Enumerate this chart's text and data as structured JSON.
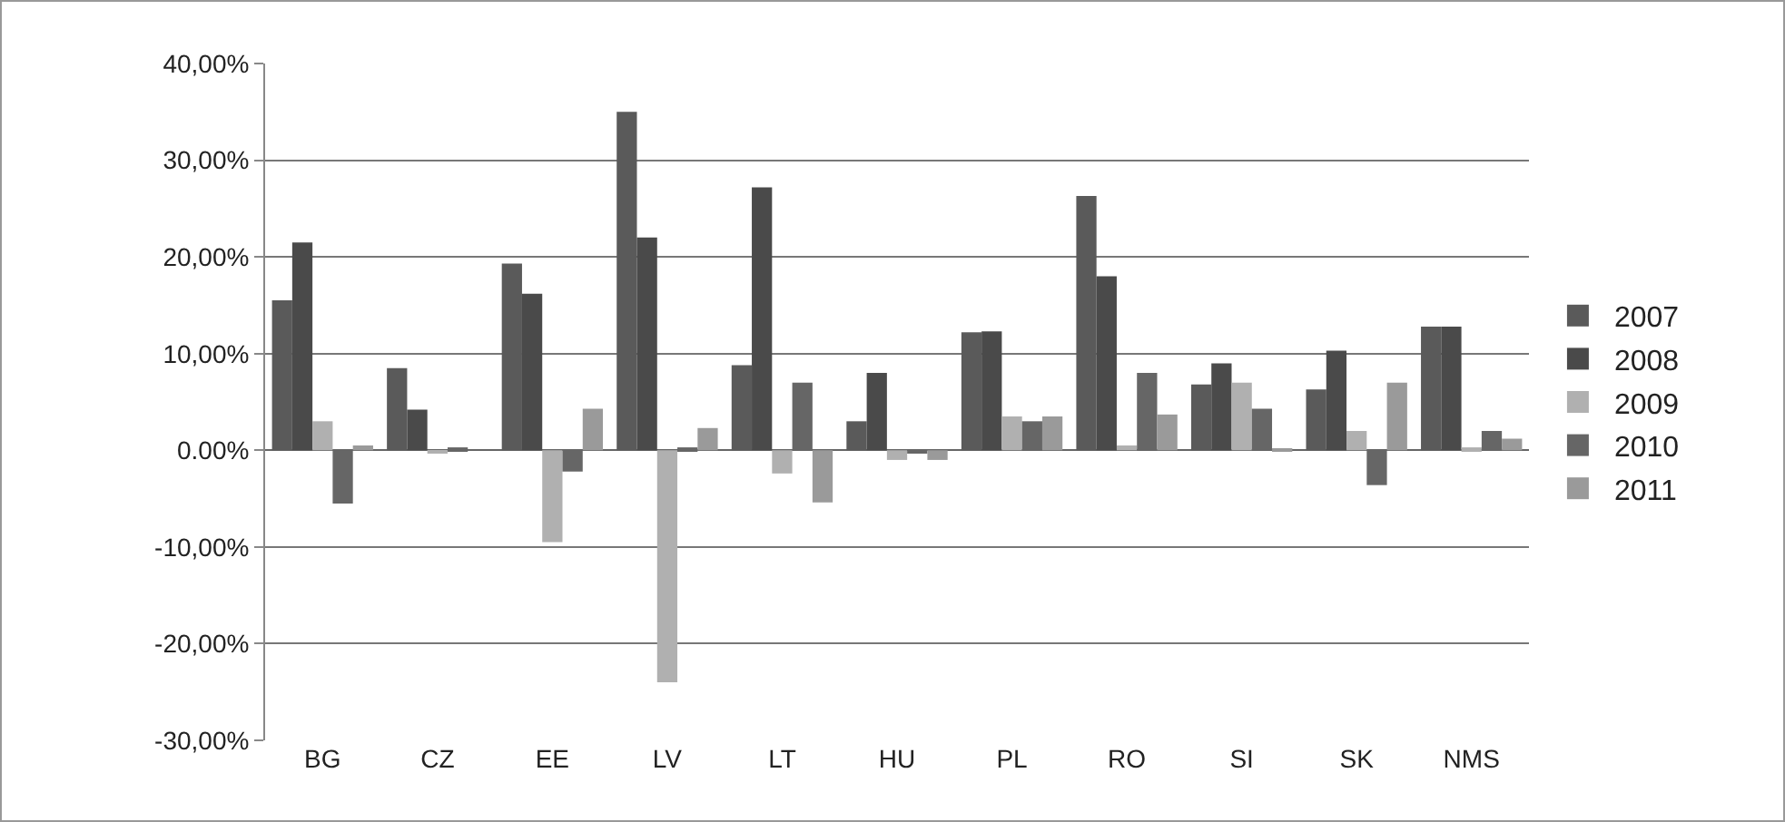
{
  "chart_data": {
    "type": "bar",
    "categories": [
      "BG",
      "CZ",
      "EE",
      "LV",
      "LT",
      "HU",
      "PL",
      "RO",
      "SI",
      "SK",
      "NMS"
    ],
    "series": [
      {
        "name": "2007",
        "color": "#5a5a5a",
        "values": [
          15.5,
          8.5,
          19.3,
          35,
          8.8,
          3,
          12.2,
          26.3,
          6.8,
          6.3,
          12.8
        ]
      },
      {
        "name": "2008",
        "color": "#4a4a4a",
        "values": [
          21.5,
          4.2,
          16.2,
          22,
          27.2,
          8,
          12.3,
          18,
          9,
          10.3,
          12.8
        ]
      },
      {
        "name": "2009",
        "color": "#b0b0b0",
        "values": [
          3,
          -0.2,
          -9.5,
          -24,
          -2.4,
          -1,
          3.5,
          0.5,
          7,
          2,
          0.3
        ]
      },
      {
        "name": "2010",
        "color": "#666666",
        "values": [
          -5.5,
          0.3,
          -2.2,
          0.3,
          7,
          -0.2,
          3,
          8,
          4.3,
          -3.6,
          2
        ]
      },
      {
        "name": "2011",
        "color": "#9a9a9a",
        "values": [
          0.5,
          0,
          4.3,
          2.3,
          -5.4,
          -1,
          3.5,
          3.7,
          0.2,
          7,
          1.2
        ]
      }
    ],
    "ylim": [
      -30,
      40
    ],
    "yticks": [
      {
        "value": -30,
        "label": "-30,00%"
      },
      {
        "value": -20,
        "label": "-20,00%"
      },
      {
        "value": -10,
        "label": "-10,00%"
      },
      {
        "value": 0,
        "label": "0.00%"
      },
      {
        "value": 10,
        "label": "10,00%"
      },
      {
        "value": 20,
        "label": "20,00%"
      },
      {
        "value": 30,
        "label": "30,00%"
      },
      {
        "value": 40,
        "label": "40,00%"
      }
    ],
    "grid": "y",
    "legend": "right"
  }
}
